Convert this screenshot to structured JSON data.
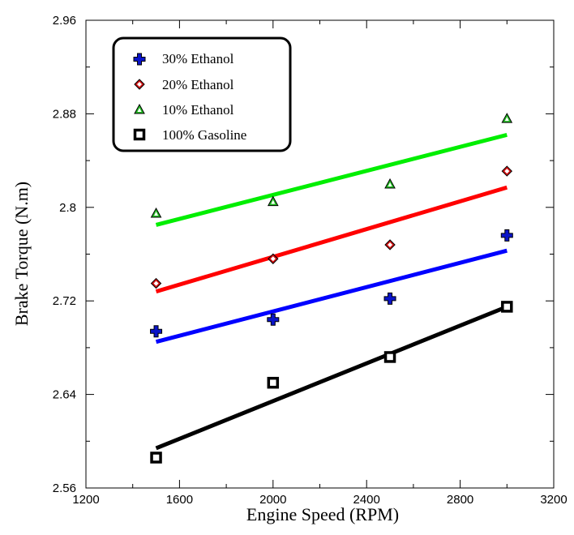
{
  "chart_data": {
    "type": "scatter",
    "xlabel": "Engine Speed (RPM)",
    "ylabel": "Brake Torque (N.m)",
    "xlim": [
      1200,
      3200
    ],
    "ylim": [
      2.56,
      2.96
    ],
    "x_ticks": [
      "1200",
      "1600",
      "2000",
      "2400",
      "2800",
      "3200"
    ],
    "y_ticks": [
      "2.56",
      "2.64",
      "2.72",
      "2.8",
      "2.88",
      "2.96"
    ],
    "legend_position": "top-left",
    "grid": false,
    "series": [
      {
        "name": "30% Ethanol",
        "marker": "plus",
        "color": "#0a14c8",
        "x": [
          1500,
          2000,
          2500,
          3000
        ],
        "y": [
          2.694,
          2.704,
          2.722,
          2.776
        ],
        "fit": [
          2.685,
          2.763
        ]
      },
      {
        "name": "20% Ethanol",
        "marker": "diamond",
        "color": "#d01010",
        "x": [
          1500,
          2000,
          2500,
          3000
        ],
        "y": [
          2.735,
          2.756,
          2.768,
          2.831
        ],
        "fit": [
          2.728,
          2.817
        ]
      },
      {
        "name": "10% Ethanol",
        "marker": "triangle",
        "color": "#22bb22",
        "x": [
          1500,
          2000,
          2500,
          3000
        ],
        "y": [
          2.795,
          2.805,
          2.82,
          2.876
        ],
        "fit": [
          2.785,
          2.862
        ]
      },
      {
        "name": "100% Gasoline",
        "marker": "square",
        "color": "#000000",
        "x": [
          1500,
          2000,
          2500,
          3000
        ],
        "y": [
          2.586,
          2.65,
          2.672,
          2.715
        ],
        "fit": [
          2.594,
          2.715
        ]
      }
    ],
    "fit_line_colors": [
      "#0000ff",
      "#ff0000",
      "#00ee00",
      "#000000"
    ]
  }
}
